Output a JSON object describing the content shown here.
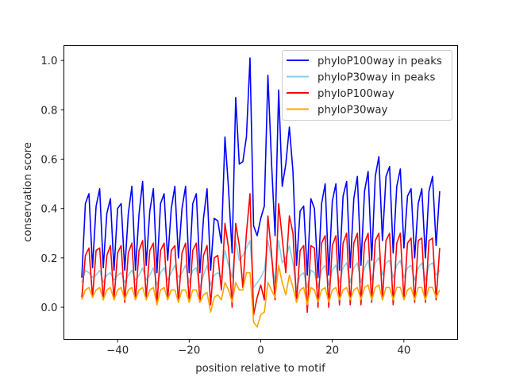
{
  "chart_data": {
    "type": "line",
    "title": "",
    "xlabel": "position relative to motif",
    "ylabel": "conservation score",
    "xlim": [
      -55,
      55
    ],
    "ylim": [
      -0.13,
      1.06
    ],
    "xticks": [
      -40,
      -20,
      0,
      20,
      40
    ],
    "xtick_labels": [
      "−40",
      "−20",
      "0",
      "20",
      "40"
    ],
    "yticks": [
      0.0,
      0.2,
      0.4,
      0.6,
      0.8,
      1.0
    ],
    "ytick_labels": [
      "0.0",
      "0.2",
      "0.4",
      "0.6",
      "0.8",
      "1.0"
    ],
    "grid": false,
    "legend_position": "top-right",
    "x_start": -50,
    "x_end": 50,
    "series": [
      {
        "name": "phyloP100way in peaks",
        "color": "#0000ff",
        "values": [
          0.12,
          0.42,
          0.46,
          0.16,
          0.41,
          0.48,
          0.16,
          0.38,
          0.44,
          0.15,
          0.4,
          0.42,
          0.15,
          0.38,
          0.49,
          0.15,
          0.38,
          0.51,
          0.17,
          0.39,
          0.48,
          0.14,
          0.42,
          0.46,
          0.19,
          0.4,
          0.49,
          0.2,
          0.4,
          0.49,
          0.14,
          0.42,
          0.46,
          0.14,
          0.36,
          0.48,
          0.15,
          0.36,
          0.35,
          0.26,
          0.69,
          0.48,
          0.22,
          0.85,
          0.58,
          0.59,
          0.69,
          1.01,
          0.33,
          0.29,
          0.36,
          0.41,
          0.94,
          0.59,
          0.29,
          0.88,
          0.49,
          0.58,
          0.73,
          0.55,
          0.17,
          0.39,
          0.41,
          0.13,
          0.44,
          0.4,
          0.12,
          0.42,
          0.5,
          0.13,
          0.43,
          0.5,
          0.15,
          0.45,
          0.51,
          0.16,
          0.44,
          0.53,
          0.17,
          0.47,
          0.55,
          0.19,
          0.53,
          0.61,
          0.27,
          0.53,
          0.57,
          0.22,
          0.49,
          0.56,
          0.24,
          0.45,
          0.48,
          0.2,
          0.42,
          0.48,
          0.2,
          0.47,
          0.53,
          0.25,
          0.47
        ]
      },
      {
        "name": "phyloP30way in peaks",
        "color": "#87ceeb",
        "values": [
          0.1,
          0.15,
          0.14,
          0.12,
          0.13,
          0.15,
          0.1,
          0.13,
          0.14,
          0.11,
          0.13,
          0.14,
          0.1,
          0.13,
          0.15,
          0.11,
          0.13,
          0.16,
          0.11,
          0.13,
          0.16,
          0.09,
          0.14,
          0.16,
          0.11,
          0.14,
          0.17,
          0.12,
          0.14,
          0.17,
          0.1,
          0.15,
          0.16,
          0.08,
          0.13,
          0.17,
          0.09,
          0.13,
          0.14,
          0.12,
          0.23,
          0.17,
          0.12,
          0.27,
          0.19,
          0.21,
          0.24,
          0.27,
          0.08,
          0.1,
          0.12,
          0.15,
          0.27,
          0.2,
          0.1,
          0.27,
          0.18,
          0.2,
          0.25,
          0.18,
          0.07,
          0.13,
          0.14,
          0.08,
          0.15,
          0.14,
          0.08,
          0.15,
          0.17,
          0.09,
          0.15,
          0.17,
          0.1,
          0.16,
          0.18,
          0.1,
          0.16,
          0.18,
          0.1,
          0.16,
          0.19,
          0.11,
          0.18,
          0.2,
          0.13,
          0.18,
          0.19,
          0.12,
          0.17,
          0.19,
          0.12,
          0.16,
          0.17,
          0.11,
          0.16,
          0.18,
          0.11,
          0.17,
          0.18,
          0.13,
          0.15
        ]
      },
      {
        "name": "phyloP100way",
        "color": "#ff0000",
        "values": [
          0.04,
          0.21,
          0.24,
          0.04,
          0.23,
          0.24,
          0.03,
          0.21,
          0.25,
          0.03,
          0.22,
          0.25,
          0.02,
          0.22,
          0.26,
          0.03,
          0.23,
          0.27,
          0.04,
          0.23,
          0.26,
          0.01,
          0.23,
          0.26,
          0.03,
          0.23,
          0.25,
          0.02,
          0.22,
          0.26,
          0.02,
          0.23,
          0.26,
          0.02,
          0.21,
          0.25,
          0.01,
          0.2,
          0.21,
          0.07,
          0.34,
          0.24,
          0.0,
          0.34,
          0.25,
          0.08,
          0.3,
          0.46,
          -0.03,
          0.04,
          0.09,
          0.03,
          0.37,
          0.22,
          0.03,
          0.42,
          0.28,
          0.14,
          0.37,
          0.3,
          0.02,
          0.23,
          0.25,
          -0.02,
          0.25,
          0.24,
          0.0,
          0.26,
          0.29,
          0.0,
          0.25,
          0.29,
          0.01,
          0.26,
          0.3,
          0.01,
          0.26,
          0.3,
          0.01,
          0.26,
          0.3,
          0.02,
          0.27,
          0.3,
          0.03,
          0.27,
          0.3,
          0.01,
          0.26,
          0.3,
          0.03,
          0.26,
          0.28,
          0.02,
          0.27,
          0.28,
          0.02,
          0.27,
          0.28,
          0.03,
          0.24
        ]
      },
      {
        "name": "phyloP30way",
        "color": "#ffa500",
        "values": [
          0.03,
          0.07,
          0.08,
          0.04,
          0.07,
          0.08,
          0.03,
          0.07,
          0.08,
          0.03,
          0.07,
          0.08,
          0.03,
          0.07,
          0.08,
          0.03,
          0.07,
          0.08,
          0.03,
          0.07,
          0.08,
          0.01,
          0.07,
          0.08,
          0.03,
          0.07,
          0.07,
          0.02,
          0.07,
          0.07,
          0.02,
          0.07,
          0.07,
          0.02,
          0.05,
          0.06,
          -0.02,
          0.04,
          0.05,
          0.03,
          0.1,
          0.07,
          0.02,
          0.1,
          0.07,
          0.07,
          0.14,
          0.14,
          -0.06,
          -0.08,
          -0.03,
          -0.02,
          0.1,
          0.07,
          0.04,
          0.17,
          0.1,
          0.05,
          0.13,
          0.08,
          0.02,
          0.07,
          0.08,
          0.01,
          0.08,
          0.07,
          0.02,
          0.07,
          0.08,
          0.02,
          0.07,
          0.08,
          0.03,
          0.07,
          0.08,
          0.03,
          0.07,
          0.08,
          0.03,
          0.08,
          0.09,
          0.03,
          0.08,
          0.09,
          0.03,
          0.08,
          0.08,
          0.03,
          0.08,
          0.08,
          0.03,
          0.07,
          0.08,
          0.03,
          0.08,
          0.08,
          0.03,
          0.08,
          0.08,
          0.04,
          0.07
        ]
      }
    ]
  }
}
